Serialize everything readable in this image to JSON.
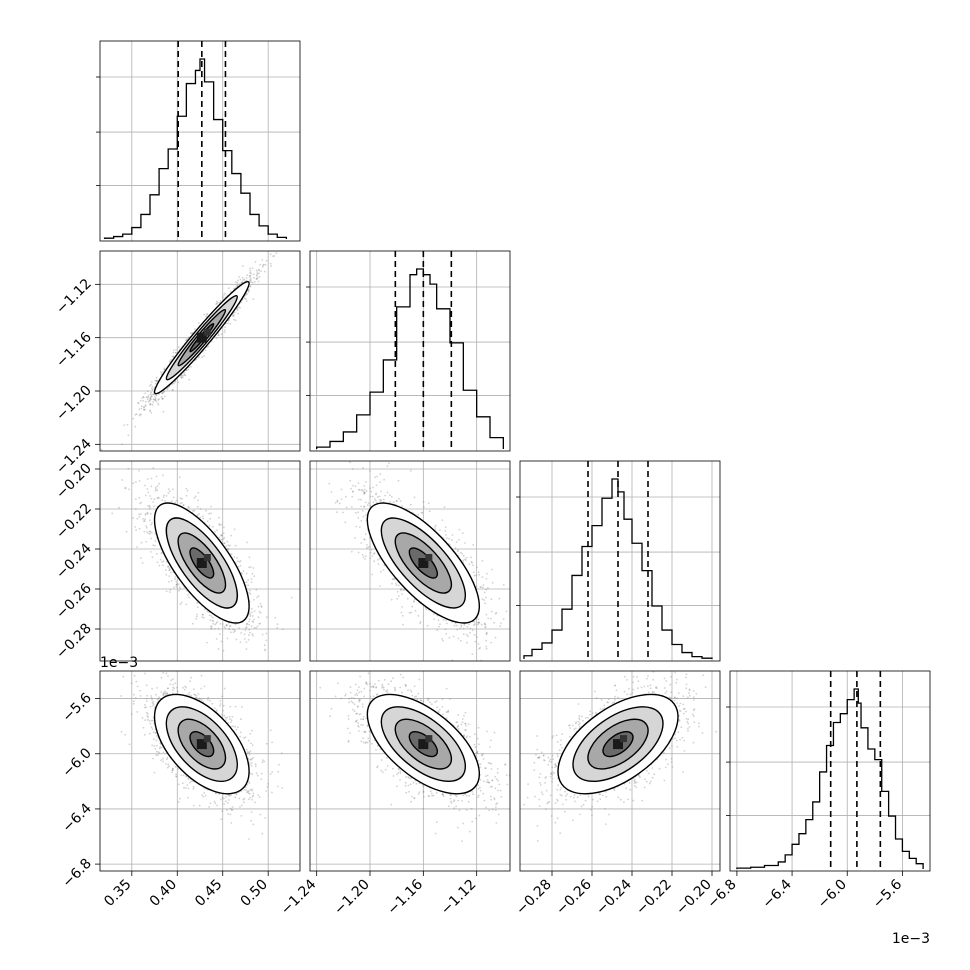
{
  "chart_data": {
    "type": "corner",
    "variables": [
      {
        "range": [
          0.315,
          0.535
        ],
        "ticks": [
          0.35,
          0.4,
          0.45,
          0.5
        ],
        "tick_labels": [
          "0.35",
          "0.40",
          "0.45",
          "0.50"
        ],
        "quantiles": [
          0.401,
          0.427,
          0.453
        ],
        "hist": {
          "edges": [
            0.32,
            0.33,
            0.34,
            0.35,
            0.36,
            0.37,
            0.38,
            0.39,
            0.4,
            0.41,
            0.42,
            0.425,
            0.43,
            0.44,
            0.45,
            0.46,
            0.47,
            0.48,
            0.49,
            0.5,
            0.51,
            0.52
          ],
          "counts": [
            0.5,
            1.5,
            3,
            7,
            15,
            27,
            43,
            55,
            75,
            95,
            103,
            110,
            96,
            73,
            54,
            40,
            28,
            15,
            8,
            3,
            1
          ]
        }
      },
      {
        "range": [
          -1.245,
          -1.095
        ],
        "ticks": [
          -1.24,
          -1.2,
          -1.16,
          -1.12
        ],
        "tick_labels": [
          "−1.24",
          "−1.20",
          "−1.16",
          "−1.12"
        ],
        "quantiles": [
          -1.181,
          -1.16,
          -1.139
        ],
        "hist": {
          "edges": [
            -1.24,
            -1.23,
            -1.22,
            -1.21,
            -1.2,
            -1.19,
            -1.18,
            -1.17,
            -1.165,
            -1.16,
            -1.155,
            -1.15,
            -1.14,
            -1.13,
            -1.12,
            -1.11,
            -1.1
          ],
          "counts": [
            1,
            4,
            9,
            18,
            30,
            47,
            75,
            92,
            95,
            92,
            87,
            74,
            56,
            31,
            17,
            6
          ]
        }
      },
      {
        "range": [
          -0.296,
          -0.196
        ],
        "ticks": [
          -0.28,
          -0.26,
          -0.24,
          -0.22,
          -0.2
        ],
        "tick_labels": [
          "−0.28",
          "−0.26",
          "−0.24",
          "−0.22",
          "−0.20"
        ],
        "quantiles": [
          -0.262,
          -0.247,
          -0.232
        ],
        "hist": {
          "edges": [
            -0.294,
            -0.29,
            -0.285,
            -0.28,
            -0.275,
            -0.27,
            -0.265,
            -0.26,
            -0.255,
            -0.25,
            -0.247,
            -0.244,
            -0.24,
            -0.235,
            -0.23,
            -0.225,
            -0.22,
            -0.215,
            -0.21,
            -0.205,
            -0.2
          ],
          "counts": [
            2,
            6,
            10,
            18,
            31,
            52,
            70,
            83,
            100,
            112,
            104,
            87,
            72,
            55,
            33,
            18,
            9,
            4,
            1.5,
            0.5
          ]
        }
      },
      {
        "range": [
          -6.85,
          -5.4
        ],
        "ticks": [
          -6.8,
          -6.4,
          -6.0,
          -5.6
        ],
        "tick_labels": [
          "−6.8",
          "−6.4",
          "−6.0",
          "−5.6"
        ],
        "offset_label": "1e−3",
        "quantiles": [
          -6.12,
          -5.93,
          -5.76
        ],
        "hist": {
          "edges": [
            -6.8,
            -6.7,
            -6.6,
            -6.5,
            -6.45,
            -6.4,
            -6.35,
            -6.3,
            -6.25,
            -6.2,
            -6.15,
            -6.1,
            -6.05,
            -6.0,
            -5.95,
            -5.92,
            -5.9,
            -5.85,
            -5.8,
            -5.75,
            -5.7,
            -5.65,
            -5.6,
            -5.55,
            -5.5,
            -5.45
          ],
          "counts": [
            0.5,
            1,
            2,
            4,
            8,
            14,
            20,
            28,
            38,
            55,
            70,
            83,
            88,
            96,
            102,
            94,
            80,
            68,
            62,
            44,
            30,
            17,
            10,
            6,
            3
          ]
        }
      }
    ],
    "pairs": [
      {
        "x": 0,
        "y": 1,
        "corr": 0.97,
        "ellipse_scale": [
          0.9,
          0.8
        ]
      },
      {
        "x": 0,
        "y": 2,
        "corr": -0.72,
        "ellipse_scale": [
          1.0,
          1.0
        ]
      },
      {
        "x": 1,
        "y": 2,
        "corr": -0.72,
        "ellipse_scale": [
          1.0,
          1.0
        ]
      },
      {
        "x": 0,
        "y": 3,
        "corr": -0.55,
        "ellipse_scale": [
          1.0,
          1.0
        ]
      },
      {
        "x": 1,
        "y": 3,
        "corr": -0.6,
        "ellipse_scale": [
          1.0,
          1.0
        ]
      },
      {
        "x": 2,
        "y": 3,
        "corr": 0.55,
        "ellipse_scale": [
          1.0,
          1.0
        ]
      }
    ],
    "contour_levels": [
      0.5,
      1.0,
      1.5,
      2.0
    ],
    "grid": true,
    "colors": {
      "contour": "#000000",
      "hist": "#000000",
      "scatter": "#7f7f7f",
      "grid": "#b0b0b0"
    }
  }
}
